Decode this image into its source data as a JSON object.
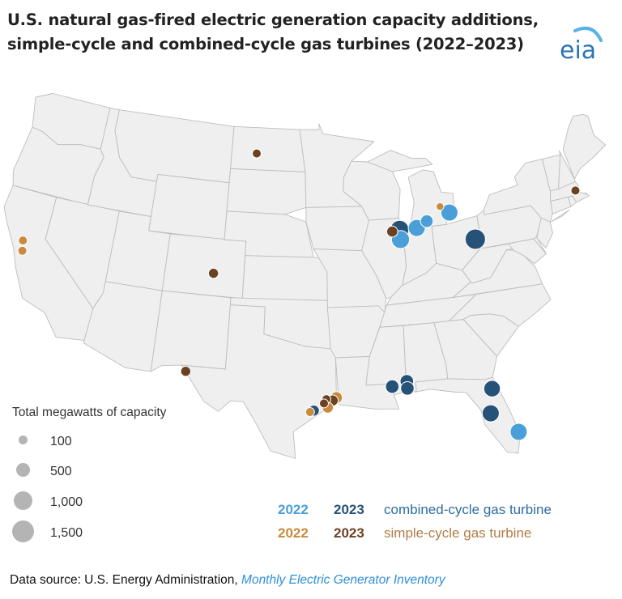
{
  "title": {
    "line1": "U.S. natural gas-fired electric generation capacity additions,",
    "line2": "simple-cycle and combined-cycle gas turbines (2022–2023)"
  },
  "logo": {
    "text": "eia",
    "color": "#2d74b5",
    "arc_color": "#5ab2e6",
    "icon": "eia-logo"
  },
  "colors": {
    "ccgt_2022": "#4a9fd9",
    "ccgt_2023": "#275278",
    "scgt_2022": "#c88a3c",
    "scgt_2023": "#6b4122",
    "map_fill": "#efefef",
    "map_border": "#bdbdbd"
  },
  "legend_size": {
    "title": "Total megawatts of capacity",
    "items": [
      {
        "label": "100",
        "mw": 100
      },
      {
        "label": "500",
        "mw": 500
      },
      {
        "label": "1,000",
        "mw": 1000
      },
      {
        "label": "1,500",
        "mw": 1500
      }
    ]
  },
  "legend_type": {
    "rows": [
      {
        "year_a": "2022",
        "year_b": "2023",
        "label": "combined-cycle gas turbine",
        "color_a": "#4a9fd9",
        "color_b": "#275278",
        "label_color": "#2e6da3"
      },
      {
        "year_a": "2022",
        "year_b": "2023",
        "label": "simple-cycle gas turbine",
        "color_a": "#c88a3c",
        "color_b": "#6b4122",
        "label_color": "#b07d47"
      }
    ]
  },
  "source": {
    "prefix": "Data source: U.S. Energy Administration, ",
    "link": "Monthly Electric Generator Inventory"
  },
  "plants": [
    {
      "state": "North Dakota",
      "lon": -101.5,
      "lat": 47.2,
      "type": "simple-cycle",
      "year": 2023,
      "mw": 100
    },
    {
      "state": "California",
      "lon": -121.9,
      "lat": 38.5,
      "type": "simple-cycle",
      "year": 2022,
      "mw": 100
    },
    {
      "state": "California",
      "lon": -121.7,
      "lat": 37.8,
      "type": "simple-cycle",
      "year": 2022,
      "mw": 100
    },
    {
      "state": "Colorado",
      "lon": -104.7,
      "lat": 38.6,
      "type": "simple-cycle",
      "year": 2023,
      "mw": 150
    },
    {
      "state": "Texas",
      "lon": -106.2,
      "lat": 31.6,
      "type": "simple-cycle",
      "year": 2023,
      "mw": 150
    },
    {
      "state": "Massachusetts",
      "lon": -71.0,
      "lat": 42.3,
      "type": "simple-cycle",
      "year": 2023,
      "mw": 100
    },
    {
      "state": "Michigan",
      "lon": -83.8,
      "lat": 43.0,
      "type": "simple-cycle",
      "year": 2022,
      "mw": 60
    },
    {
      "state": "Illinois",
      "lon": -88.5,
      "lat": 41.6,
      "type": "simple-cycle",
      "year": 2023,
      "mw": 200
    },
    {
      "state": "Texas",
      "lon": -94.0,
      "lat": 30.2,
      "type": "simple-cycle",
      "year": 2022,
      "mw": 250
    },
    {
      "state": "Texas",
      "lon": -94.3,
      "lat": 30.0,
      "type": "simple-cycle",
      "year": 2023,
      "mw": 200
    },
    {
      "state": "Texas",
      "lon": -94.8,
      "lat": 30.1,
      "type": "simple-cycle",
      "year": 2023,
      "mw": 100
    },
    {
      "state": "Texas",
      "lon": -95.0,
      "lat": 29.8,
      "type": "simple-cycle",
      "year": 2023,
      "mw": 100
    },
    {
      "state": "Texas",
      "lon": -94.7,
      "lat": 29.5,
      "type": "simple-cycle",
      "year": 2022,
      "mw": 200
    },
    {
      "state": "Texas",
      "lon": -96.1,
      "lat": 29.2,
      "type": "simple-cycle",
      "year": 2022,
      "mw": 100
    },
    {
      "state": "Texas",
      "lon": -95.8,
      "lat": 29.3,
      "type": "combined-cycle",
      "year": 2023,
      "mw": 200
    },
    {
      "state": "Illinois",
      "lon": -87.8,
      "lat": 41.0,
      "type": "combined-cycle",
      "year": 2022,
      "mw": 750
    },
    {
      "state": "Illinois",
      "lon": -87.8,
      "lat": 41.7,
      "type": "combined-cycle",
      "year": 2023,
      "mw": 800
    },
    {
      "state": "Indiana",
      "lon": -86.2,
      "lat": 41.7,
      "type": "combined-cycle",
      "year": 2022,
      "mw": 650
    },
    {
      "state": "Michigan",
      "lon": -85.2,
      "lat": 42.1,
      "type": "combined-cycle",
      "year": 2022,
      "mw": 300
    },
    {
      "state": "Michigan",
      "lon": -83.0,
      "lat": 42.5,
      "type": "combined-cycle",
      "year": 2022,
      "mw": 650
    },
    {
      "state": "Ohio",
      "lon": -81.0,
      "lat": 40.4,
      "type": "combined-cycle",
      "year": 2023,
      "mw": 1000
    },
    {
      "state": "Mississippi",
      "lon": -89.5,
      "lat": 30.8,
      "type": "combined-cycle",
      "year": 2023,
      "mw": 350
    },
    {
      "state": "Alabama",
      "lon": -88.3,
      "lat": 31.1,
      "type": "combined-cycle",
      "year": 2023,
      "mw": 350
    },
    {
      "state": "Alabama",
      "lon": -88.3,
      "lat": 30.6,
      "type": "combined-cycle",
      "year": 2023,
      "mw": 350
    },
    {
      "state": "Florida",
      "lon": -81.6,
      "lat": 29.9,
      "type": "combined-cycle",
      "year": 2023,
      "mw": 600
    },
    {
      "state": "Florida",
      "lon": -82.0,
      "lat": 28.2,
      "type": "combined-cycle",
      "year": 2023,
      "mw": 650
    },
    {
      "state": "Florida",
      "lon": -80.1,
      "lat": 26.6,
      "type": "combined-cycle",
      "year": 2022,
      "mw": 650
    }
  ]
}
